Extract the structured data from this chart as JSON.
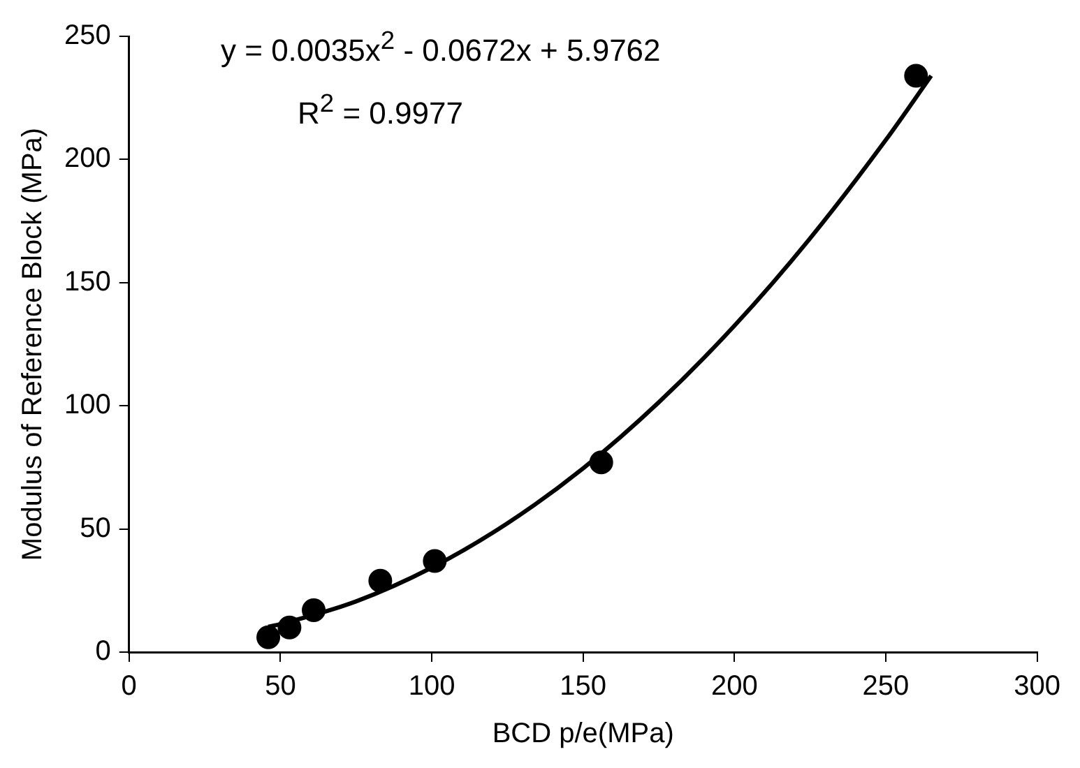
{
  "chart_data": {
    "type": "scatter",
    "xlabel": "BCD p/e(MPa)",
    "ylabel": "Modulus of Reference Block (MPa)",
    "xlim": [
      0,
      300
    ],
    "ylim": [
      0,
      250
    ],
    "xticks": [
      0,
      50,
      100,
      150,
      200,
      250,
      300
    ],
    "yticks": [
      0,
      50,
      100,
      150,
      200,
      250
    ],
    "grid": false,
    "marker": "circle",
    "annotations": [
      "y = 0.0035x$^{2}$ - 0.0672x + 5.9762",
      "R$^{2}$ = 0.9977"
    ],
    "series": [
      {
        "type": "scatter",
        "color": "#000000",
        "x": [
          46,
          53,
          61,
          83,
          101,
          156,
          260
        ],
        "values": [
          6,
          10,
          17,
          29,
          37,
          77,
          234
        ]
      },
      {
        "type": "line",
        "color": "#000000",
        "marker": "none",
        "line_style": "solid",
        "x": [
          46,
          50,
          75,
          100,
          125,
          150,
          175,
          200,
          225,
          250,
          265
        ],
        "values": [
          10.3,
          11.4,
          20.6,
          34.3,
          52.3,
          74.6,
          101.4,
          132.5,
          168.0,
          207.9,
          234.0
        ]
      }
    ]
  }
}
